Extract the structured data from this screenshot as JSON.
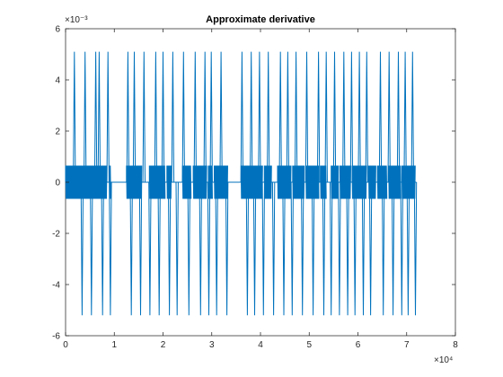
{
  "figure": {
    "background": "#ffffff"
  },
  "chart_data": {
    "type": "line",
    "title": "Approximate derivative",
    "xlabel": "",
    "ylabel": "",
    "x_exponent": "×10⁴",
    "y_exponent": "×10⁻³",
    "xlim": [
      0,
      80000
    ],
    "ylim": [
      -0.006,
      0.006
    ],
    "xticks": [
      0,
      10000,
      20000,
      30000,
      40000,
      50000,
      60000,
      70000,
      80000
    ],
    "xtick_labels": [
      "0",
      "1",
      "2",
      "3",
      "4",
      "5",
      "6",
      "7",
      "8"
    ],
    "yticks": [
      -0.006,
      -0.004,
      -0.002,
      0,
      0.002,
      0.004,
      0.006
    ],
    "ytick_labels": [
      "-6",
      "-4",
      "-2",
      "0",
      "2",
      "4",
      "6"
    ],
    "grid": false,
    "box": true,
    "series": [
      {
        "color": "#0072BD",
        "x_range": [
          0,
          72000
        ],
        "baseline": 0,
        "oscillation_amplitude": 0.00065,
        "spike_max": 0.0051,
        "spike_min": -0.0052,
        "dense_segments": [
          [
            0,
            8500
          ],
          [
            9000,
            9300
          ],
          [
            12500,
            15700
          ],
          [
            17200,
            20500
          ],
          [
            20800,
            21800
          ],
          [
            24000,
            25800
          ],
          [
            26200,
            29000
          ],
          [
            29300,
            30200
          ],
          [
            30500,
            33300
          ],
          [
            36000,
            40500
          ],
          [
            40800,
            42300
          ],
          [
            43500,
            46300
          ],
          [
            46600,
            49000
          ],
          [
            49300,
            52000
          ],
          [
            52300,
            53500
          ],
          [
            54500,
            56000
          ],
          [
            56300,
            58600
          ],
          [
            58800,
            61800
          ],
          [
            62200,
            63700
          ],
          [
            64000,
            66000
          ],
          [
            66300,
            68800
          ],
          [
            69000,
            71800
          ]
        ],
        "spikes": [
          [
            1800,
            1
          ],
          [
            3400,
            -1
          ],
          [
            4000,
            1
          ],
          [
            5300,
            -1
          ],
          [
            6200,
            1
          ],
          [
            6900,
            1
          ],
          [
            7600,
            -1
          ],
          [
            8700,
            1
          ],
          [
            9200,
            -1
          ],
          [
            12800,
            1
          ],
          [
            13500,
            -1
          ],
          [
            14100,
            1
          ],
          [
            15400,
            -1
          ],
          [
            16100,
            1
          ],
          [
            17300,
            -1
          ],
          [
            18500,
            1
          ],
          [
            19200,
            -1
          ],
          [
            20000,
            1
          ],
          [
            21300,
            -1
          ],
          [
            22000,
            1
          ],
          [
            22900,
            -1
          ],
          [
            24200,
            1
          ],
          [
            25300,
            -1
          ],
          [
            26600,
            1
          ],
          [
            27700,
            -1
          ],
          [
            28600,
            1
          ],
          [
            29400,
            -1
          ],
          [
            29900,
            1
          ],
          [
            31000,
            -1
          ],
          [
            31900,
            1
          ],
          [
            33100,
            -1
          ],
          [
            36200,
            1
          ],
          [
            37300,
            -1
          ],
          [
            38100,
            1
          ],
          [
            38800,
            -1
          ],
          [
            39800,
            1
          ],
          [
            40600,
            -1
          ],
          [
            41600,
            1
          ],
          [
            42700,
            -1
          ],
          [
            44100,
            1
          ],
          [
            44800,
            -1
          ],
          [
            45600,
            1
          ],
          [
            46500,
            -1
          ],
          [
            47300,
            1
          ],
          [
            48600,
            -1
          ],
          [
            49500,
            1
          ],
          [
            50800,
            -1
          ],
          [
            51900,
            1
          ],
          [
            53000,
            -1
          ],
          [
            53500,
            1
          ],
          [
            54500,
            -1
          ],
          [
            55200,
            1
          ],
          [
            56200,
            -1
          ],
          [
            57100,
            1
          ],
          [
            57900,
            -1
          ],
          [
            58700,
            1
          ],
          [
            59400,
            -1
          ],
          [
            60300,
            1
          ],
          [
            61100,
            -1
          ],
          [
            61800,
            1
          ],
          [
            62600,
            -1
          ],
          [
            64600,
            1
          ],
          [
            65200,
            -1
          ],
          [
            66400,
            1
          ],
          [
            67200,
            -1
          ],
          [
            68300,
            1
          ],
          [
            69000,
            -1
          ],
          [
            69700,
            1
          ],
          [
            70300,
            -1
          ],
          [
            71200,
            1
          ],
          [
            71800,
            -1
          ]
        ]
      }
    ]
  }
}
